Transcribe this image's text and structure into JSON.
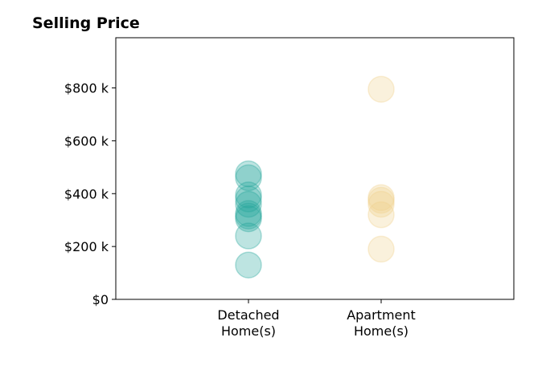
{
  "chart_data": {
    "type": "scatter",
    "title": "Selling Price",
    "xlabel": "",
    "ylabel": "",
    "categories": [
      "Detached\nHome(s)",
      "Apartment\nHome(s)"
    ],
    "ylim": [
      0,
      990000
    ],
    "xlim": [
      -1,
      2
    ],
    "yticks": [
      {
        "value": 0,
        "label": "$0"
      },
      {
        "value": 200000,
        "label": "$200 k"
      },
      {
        "value": 400000,
        "label": "$400 k"
      },
      {
        "value": 600000,
        "label": "$600 k"
      },
      {
        "value": 800000,
        "label": "$800 k"
      }
    ],
    "grid": false,
    "series": [
      {
        "category": "Detached\nHome(s)",
        "color": "#26a69a",
        "values": [
          130000,
          240000,
          305000,
          315000,
          325000,
          360000,
          380000,
          395000,
          460000,
          475000
        ]
      },
      {
        "category": "Apartment\nHome(s)",
        "color": "#f0d08c",
        "values": [
          190000,
          320000,
          360000,
          375000,
          385000,
          795000
        ]
      }
    ]
  },
  "colors": {
    "detached": "#26a69a",
    "apartment": "#f0d08c",
    "axis": "#000000",
    "text": "#000000"
  }
}
